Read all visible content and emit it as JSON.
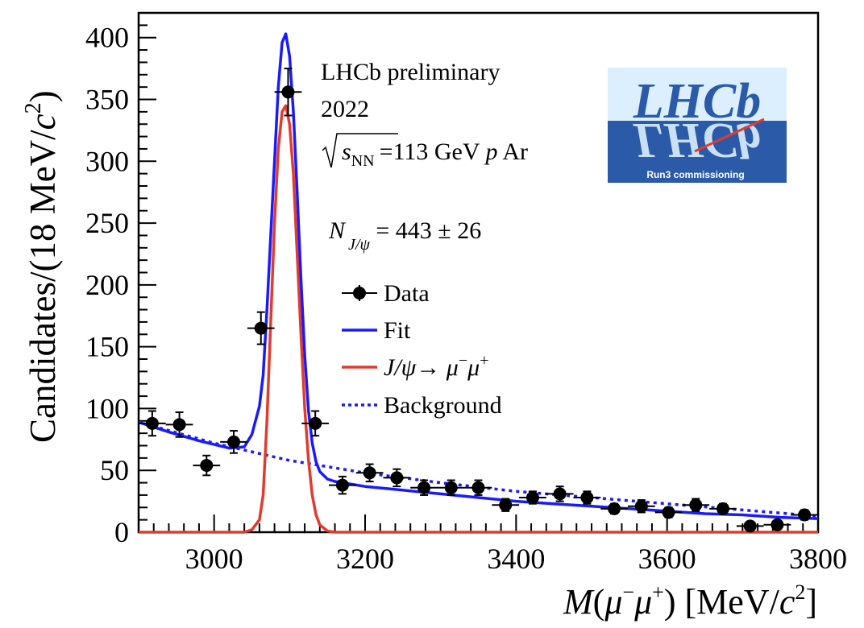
{
  "chart_data": {
    "type": "scatter",
    "xlabel_parts": {
      "var": "M",
      "open": "(",
      "mu1": "μ",
      "sup1": "−",
      "mu2": "μ",
      "sup2": "+",
      "close": ")",
      "units": " [MeV/",
      "c": "c",
      "csup": "2",
      "end": "]"
    },
    "ylabel_parts": {
      "main": "Candidates/(18 MeV/",
      "c": "c",
      "csup": "2",
      "end": ")"
    },
    "xlim": [
      2900,
      3800
    ],
    "ylim": [
      0,
      420
    ],
    "x_ticks": [
      3000,
      3200,
      3400,
      3600,
      3800
    ],
    "y_ticks": [
      0,
      50,
      100,
      150,
      200,
      250,
      300,
      350,
      400
    ],
    "bin_halfwidth": 18,
    "series": [
      {
        "name": "Data",
        "style": "points-errorbars",
        "color": "#000000",
        "points": [
          {
            "x": 2918,
            "y": 88,
            "err": 10
          },
          {
            "x": 2954,
            "y": 87,
            "err": 10
          },
          {
            "x": 2990,
            "y": 54,
            "err": 8
          },
          {
            "x": 3026,
            "y": 73,
            "err": 9
          },
          {
            "x": 3062,
            "y": 165,
            "err": 13
          },
          {
            "x": 3098,
            "y": 356,
            "err": 19
          },
          {
            "x": 3134,
            "y": 88,
            "err": 10
          },
          {
            "x": 3170,
            "y": 38,
            "err": 7
          },
          {
            "x": 3206,
            "y": 48,
            "err": 7
          },
          {
            "x": 3242,
            "y": 44,
            "err": 7
          },
          {
            "x": 3278,
            "y": 36,
            "err": 6
          },
          {
            "x": 3314,
            "y": 36,
            "err": 6
          },
          {
            "x": 3350,
            "y": 36,
            "err": 6
          },
          {
            "x": 3386,
            "y": 22,
            "err": 5
          },
          {
            "x": 3422,
            "y": 28,
            "err": 5
          },
          {
            "x": 3458,
            "y": 31,
            "err": 6
          },
          {
            "x": 3494,
            "y": 28,
            "err": 5
          },
          {
            "x": 3530,
            "y": 19,
            "err": 4
          },
          {
            "x": 3566,
            "y": 21,
            "err": 5
          },
          {
            "x": 3602,
            "y": 16,
            "err": 4
          },
          {
            "x": 3638,
            "y": 22,
            "err": 5
          },
          {
            "x": 3674,
            "y": 19,
            "err": 4
          },
          {
            "x": 3710,
            "y": 5,
            "err": 2
          },
          {
            "x": 3746,
            "y": 6,
            "err": 2
          },
          {
            "x": 3782,
            "y": 14,
            "err": 4
          }
        ]
      },
      {
        "name": "Fit",
        "style": "line",
        "color": "#1a1aff",
        "x": [
          2900,
          2940,
          2980,
          3020,
          3040,
          3050,
          3060,
          3065,
          3070,
          3075,
          3080,
          3085,
          3090,
          3095,
          3100,
          3105,
          3110,
          3115,
          3120,
          3125,
          3130,
          3135,
          3140,
          3150,
          3160,
          3180,
          3200,
          3250,
          3300,
          3350,
          3400,
          3450,
          3500,
          3550,
          3600,
          3650,
          3700,
          3750,
          3800
        ],
        "y": [
          89,
          81,
          74,
          68,
          69,
          79,
          102,
          127,
          180,
          240,
          300,
          360,
          396,
          403,
          385,
          340,
          275,
          205,
          143,
          98,
          72,
          57,
          49,
          43,
          41,
          39,
          37,
          34,
          31,
          28,
          25,
          23,
          21,
          19,
          17,
          15,
          14,
          12,
          11
        ]
      },
      {
        "name": "J/ψ→ μ−μ+",
        "style": "line",
        "color": "#e23b2e",
        "x": [
          2900,
          3000,
          3040,
          3050,
          3060,
          3065,
          3070,
          3075,
          3080,
          3085,
          3090,
          3095,
          3100,
          3105,
          3110,
          3115,
          3120,
          3125,
          3130,
          3135,
          3140,
          3150,
          3160,
          3200,
          3800
        ],
        "y": [
          0,
          0,
          0,
          2,
          10,
          30,
          90,
          170,
          250,
          310,
          340,
          345,
          330,
          290,
          225,
          160,
          100,
          58,
          30,
          14,
          6,
          1,
          0,
          0,
          0
        ]
      },
      {
        "name": "Background",
        "style": "dotted",
        "color": "#1a1aff",
        "x": [
          2900,
          3000,
          3100,
          3200,
          3300,
          3400,
          3500,
          3600,
          3700,
          3800
        ],
        "y": [
          89,
          72,
          58,
          48,
          40,
          33,
          28,
          23,
          18,
          13
        ]
      }
    ]
  },
  "annotations": {
    "line1": "LHCb preliminary",
    "line2": "2022",
    "energy": {
      "s": "s",
      "sub": "NN",
      "rest": "=113 GeV ",
      "p": "p",
      "ar": " Ar"
    },
    "yield": {
      "N": "N",
      "sub": "J/ψ",
      "rest": " = 443 ± 26"
    }
  },
  "legend": {
    "data": "Data",
    "fit": "Fit",
    "jpsi": {
      "a": "J/ψ→ ",
      "mu1": "μ",
      "s1": "−",
      "mu2": "μ",
      "s2": "+"
    },
    "background": "Background"
  },
  "logo": {
    "text": "LHCb",
    "caption": "Run3 commissioning",
    "top_color": "#dcefff",
    "bottom_color": "#2a5aa8",
    "text_color": "#2a5aa8",
    "slash_color": "#e23b2e"
  }
}
